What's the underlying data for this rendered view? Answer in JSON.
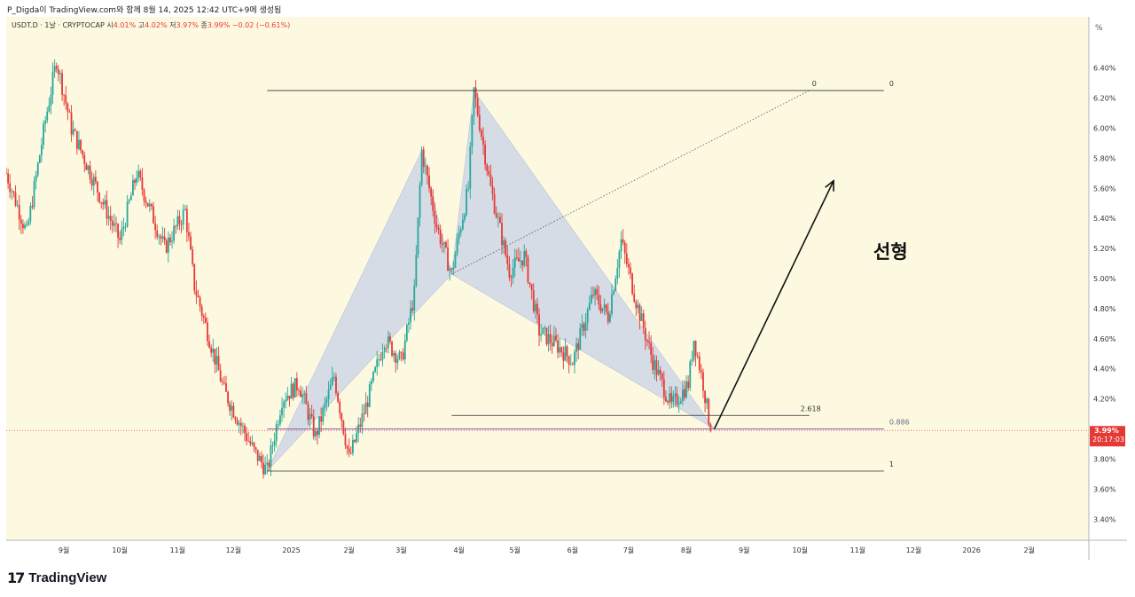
{
  "credit": "P_Digda이 TradingView.com와 함께 8월 14, 2025 12:42 UTC+9에 생성됨",
  "legend": {
    "symbol": "USDT.D · 1날 · CRYPTOCAP",
    "open_label": "시",
    "open": "4.01%",
    "high_label": "고",
    "high": "4.02%",
    "low_label": "저",
    "low": "3.97%",
    "close_label": "종",
    "close": "3.99%",
    "change": "−0.02 (−0.61%)"
  },
  "scale_label": "%",
  "price_tag": {
    "value": "3.99%",
    "countdown": "20:17:03"
  },
  "annotation_text": "선형",
  "brand": "TradingView",
  "colors": {
    "background": "#fdf9e1",
    "up": "#26a69a",
    "down": "#e53935",
    "pattern_fill": "#c9d4e6",
    "price_tag": "#e53935",
    "fib_level": "#8e6bb5"
  },
  "chart_data": {
    "type": "candlestick",
    "title": "",
    "xlabel": "",
    "ylabel": "",
    "x_ticks": [
      "9월",
      "10월",
      "11월",
      "12월",
      "2025",
      "2월",
      "3월",
      "4월",
      "5월",
      "6월",
      "7월",
      "8월",
      "9월",
      "10월",
      "11월",
      "12월",
      "2026",
      "2월"
    ],
    "y_ticks": [
      "6.40%",
      "6.20%",
      "6.00%",
      "5.80%",
      "5.60%",
      "5.40%",
      "5.20%",
      "5.00%",
      "4.80%",
      "4.60%",
      "4.40%",
      "4.20%",
      "4.00%",
      "3.80%",
      "3.60%",
      "3.40%"
    ],
    "ylim": [
      3.26,
      6.74
    ],
    "xlim": [
      "2024-08-01",
      "2026-03-05"
    ],
    "last_close": 3.99,
    "price_path": [
      {
        "date": "2024-08-01",
        "value": 5.7
      },
      {
        "date": "2024-08-12",
        "value": 5.3
      },
      {
        "date": "2024-08-22",
        "value": 6.05
      },
      {
        "date": "2024-08-28",
        "value": 6.45
      },
      {
        "date": "2024-09-05",
        "value": 6.0
      },
      {
        "date": "2024-09-22",
        "value": 5.5
      },
      {
        "date": "2024-10-01",
        "value": 5.25
      },
      {
        "date": "2024-10-10",
        "value": 5.7
      },
      {
        "date": "2024-10-25",
        "value": 5.2
      },
      {
        "date": "2024-11-05",
        "value": 5.45
      },
      {
        "date": "2024-11-10",
        "value": 4.95
      },
      {
        "date": "2024-11-18",
        "value": 4.6
      },
      {
        "date": "2024-11-26",
        "value": 4.25
      },
      {
        "date": "2024-12-04",
        "value": 4.05
      },
      {
        "date": "2024-12-12",
        "value": 3.85
      },
      {
        "date": "2024-12-19",
        "value": 3.72
      },
      {
        "date": "2024-12-27",
        "value": 4.2
      },
      {
        "date": "2025-01-05",
        "value": 4.3
      },
      {
        "date": "2025-01-14",
        "value": 3.95
      },
      {
        "date": "2025-01-24",
        "value": 4.35
      },
      {
        "date": "2025-02-01",
        "value": 3.8
      },
      {
        "date": "2025-02-10",
        "value": 4.15
      },
      {
        "date": "2025-02-20",
        "value": 4.6
      },
      {
        "date": "2025-03-01",
        "value": 4.45
      },
      {
        "date": "2025-03-08",
        "value": 4.9
      },
      {
        "date": "2025-03-12",
        "value": 5.85
      },
      {
        "date": "2025-03-20",
        "value": 5.35
      },
      {
        "date": "2025-03-28",
        "value": 5.03
      },
      {
        "date": "2025-04-01",
        "value": 5.3
      },
      {
        "date": "2025-04-06",
        "value": 5.6
      },
      {
        "date": "2025-04-09",
        "value": 6.25
      },
      {
        "date": "2025-04-18",
        "value": 5.6
      },
      {
        "date": "2025-04-28",
        "value": 5.05
      },
      {
        "date": "2025-05-06",
        "value": 5.15
      },
      {
        "date": "2025-05-14",
        "value": 4.65
      },
      {
        "date": "2025-05-24",
        "value": 4.55
      },
      {
        "date": "2025-06-01",
        "value": 4.45
      },
      {
        "date": "2025-06-12",
        "value": 4.9
      },
      {
        "date": "2025-06-20",
        "value": 4.75
      },
      {
        "date": "2025-06-27",
        "value": 5.25
      },
      {
        "date": "2025-07-05",
        "value": 4.85
      },
      {
        "date": "2025-07-14",
        "value": 4.45
      },
      {
        "date": "2025-07-24",
        "value": 4.15
      },
      {
        "date": "2025-08-02",
        "value": 4.3
      },
      {
        "date": "2025-08-05",
        "value": 4.6
      },
      {
        "date": "2025-08-10",
        "value": 4.3
      },
      {
        "date": "2025-08-14",
        "value": 3.99
      }
    ],
    "harmonic_pattern": {
      "points": [
        {
          "date": "2024-12-19",
          "value": 3.72
        },
        {
          "date": "2025-03-12",
          "value": 5.85
        },
        {
          "date": "2025-03-28",
          "value": 5.03
        },
        {
          "date": "2025-04-09",
          "value": 6.25
        },
        {
          "date": "2025-08-16",
          "value": 4.0
        }
      ]
    },
    "levels": [
      {
        "label": "0",
        "value": 6.25,
        "from": "2024-12-19",
        "to": "2025-10-06"
      },
      {
        "label": "0",
        "value": 6.25,
        "from": "2025-10-06",
        "to": "2025-11-15"
      },
      {
        "label": "0.886",
        "value": 4.0,
        "from": "2024-12-19",
        "to": "2025-11-15"
      },
      {
        "label": "1",
        "value": 3.72,
        "from": "2024-12-19",
        "to": "2025-11-15"
      },
      {
        "label": "2.618",
        "value": 4.09,
        "from": "2025-03-28",
        "to": "2025-10-06"
      }
    ],
    "dotted_trend": {
      "from": {
        "date": "2025-03-28",
        "value": 5.03
      },
      "to": {
        "date": "2025-10-06",
        "value": 6.25
      }
    },
    "arrow": {
      "from": {
        "date": "2025-08-16",
        "value": 4.0
      },
      "to": {
        "date": "2025-10-19",
        "value": 5.65
      }
    },
    "legend_position": "top-left"
  }
}
